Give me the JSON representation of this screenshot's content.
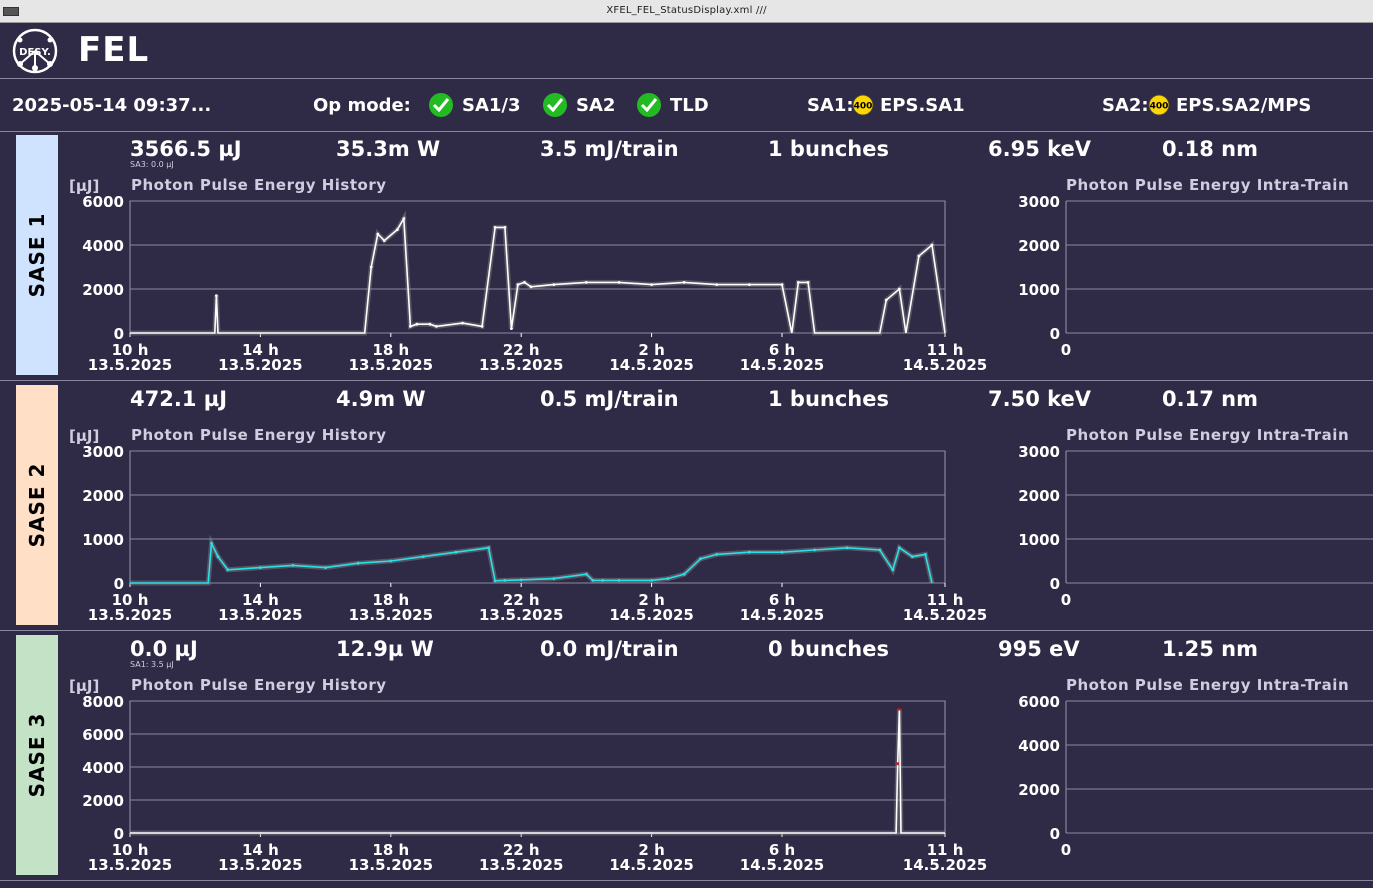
{
  "window": {
    "title": "XFEL_FEL_StatusDisplay.xml   ///"
  },
  "header": {
    "logo_text": "DESY.",
    "title": "FEL"
  },
  "status": {
    "datetime": "2025-05-14 09:37...",
    "op_mode_label": "Op mode:",
    "modes": [
      "SA1/3",
      "SA2",
      "TLD"
    ],
    "sa1_label": "SA1:",
    "sa1_badge": "400",
    "sa1_eps": "EPS.SA1",
    "sa2_label": "SA2:",
    "sa2_badge": "400",
    "sa2_eps": "EPS.SA2/MPS",
    "colors": {
      "check": "#22bb22",
      "badge": "#ffd700"
    }
  },
  "time_axis": {
    "ticks": [
      {
        "h": "10 h",
        "d": "13.5.2025"
      },
      {
        "h": "14 h",
        "d": "13.5.2025"
      },
      {
        "h": "18 h",
        "d": "13.5.2025"
      },
      {
        "h": "22 h",
        "d": "13.5.2025"
      },
      {
        "h": "2 h",
        "d": "14.5.2025"
      },
      {
        "h": "6 h",
        "d": "14.5.2025"
      },
      {
        "h": "11 h",
        "d": "14.5.2025"
      }
    ]
  },
  "panels": [
    {
      "label": "SASE 1",
      "color": "#cfe3ff",
      "energy": "3566.5 µJ",
      "sub": "SA3:   0.0 µJ",
      "power": "35.3m W",
      "train": "3.5 mJ/train",
      "bunches": "1 bunches",
      "photon_energy": "6.95 keV",
      "wavelength": "0.18 nm",
      "unit": "[µJ]",
      "history_title": "Photon Pulse Energy History",
      "intra_title": "Photon Pulse Energy Intra-Train",
      "history_yticks": [
        "6000",
        "4000",
        "2000",
        "0"
      ],
      "intra_yticks": [
        "3000",
        "2000",
        "1000",
        "0"
      ],
      "intra_x": "0"
    },
    {
      "label": "SASE 2",
      "color": "#ffe0c6",
      "energy": "472.1 µJ",
      "sub": "",
      "power": "4.9m W",
      "train": "0.5 mJ/train",
      "bunches": "1 bunches",
      "photon_energy": "7.50 keV",
      "wavelength": "0.17 nm",
      "unit": "[µJ]",
      "history_title": "Photon Pulse Energy History",
      "intra_title": "Photon Pulse Energy Intra-Train",
      "history_yticks": [
        "3000",
        "2000",
        "1000",
        "0"
      ],
      "intra_yticks": [
        "3000",
        "2000",
        "1000",
        "0"
      ],
      "intra_x": "0"
    },
    {
      "label": "SASE 3",
      "color": "#c4e3c6",
      "energy": "0.0 µJ",
      "sub": "SA1:   3.5 µJ",
      "power": "12.9µ W",
      "train": "0.0 mJ/train",
      "bunches": "0 bunches",
      "photon_energy": "995 eV",
      "wavelength": "1.25 nm",
      "unit": "[µJ]",
      "history_title": "Photon Pulse Energy History",
      "intra_title": "Photon Pulse Energy Intra-Train",
      "history_yticks": [
        "8000",
        "6000",
        "4000",
        "2000",
        "0"
      ],
      "intra_yticks": [
        "6000",
        "4000",
        "2000",
        "0"
      ],
      "intra_x": "0"
    }
  ],
  "chart_data": [
    {
      "type": "line",
      "title": "Photon Pulse Energy History",
      "ylabel": "[µJ]",
      "ylim": [
        0,
        6000
      ],
      "x_range": [
        "10 h 13.5.2025",
        "11 h 14.5.2025"
      ],
      "series": [
        {
          "x_hours": [
            0,
            2.6,
            2.65,
            2.7,
            7,
            7.2,
            7.4,
            7.6,
            7.8,
            8.2,
            8.4,
            8.6,
            8.8,
            9.2,
            9.4,
            10.2,
            10.8,
            11.2,
            11.5,
            11.7,
            11.9,
            12.1,
            12.3,
            13,
            14,
            15,
            16,
            17,
            18,
            19,
            20,
            20.3,
            20.5,
            20.8,
            21,
            21.2,
            21.5,
            22,
            22.3,
            23,
            23.2,
            23.6,
            23.8,
            24.2,
            24.6,
            25
          ],
          "values": [
            0,
            0,
            1700,
            0,
            0,
            0,
            3000,
            4500,
            4200,
            4700,
            5200,
            300,
            400,
            400,
            300,
            450,
            300,
            4800,
            4800,
            200,
            2200,
            2300,
            2100,
            2200,
            2300,
            2300,
            2200,
            2300,
            2200,
            2200,
            2200,
            0,
            2300,
            2300,
            0,
            0,
            0,
            0,
            0,
            0,
            1500,
            2000,
            0,
            3500,
            4000,
            0
          ]
        }
      ]
    },
    {
      "type": "line",
      "title": "Photon Pulse Energy History",
      "ylabel": "[µJ]",
      "ylim": [
        0,
        3000
      ],
      "x_range": [
        "10 h 13.5.2025",
        "11 h 14.5.2025"
      ],
      "series": [
        {
          "x_hours": [
            0,
            2.4,
            2.5,
            2.7,
            3,
            4,
            5,
            6,
            7,
            8,
            9,
            10,
            11,
            11.2,
            11.5,
            12,
            13,
            14,
            14.2,
            14.5,
            15,
            16,
            16.5,
            17,
            17.5,
            18,
            19,
            20,
            21,
            22,
            23,
            23.4,
            23.6,
            24,
            24.4,
            24.6
          ],
          "values": [
            0,
            0,
            900,
            600,
            300,
            350,
            400,
            350,
            450,
            500,
            600,
            700,
            800,
            50,
            60,
            70,
            100,
            200,
            60,
            60,
            60,
            60,
            100,
            200,
            550,
            650,
            700,
            700,
            750,
            800,
            750,
            300,
            800,
            600,
            650,
            0
          ]
        }
      ]
    },
    {
      "type": "line",
      "title": "Photon Pulse Energy History",
      "ylabel": "[µJ]",
      "ylim": [
        0,
        8000
      ],
      "x_range": [
        "10 h 13.5.2025",
        "11 h 14.5.2025"
      ],
      "series": [
        {
          "x_hours": [
            0,
            23.5,
            23.55,
            23.6,
            23.65,
            25
          ],
          "values": [
            0,
            0,
            4200,
            7500,
            0,
            0
          ]
        }
      ]
    }
  ]
}
